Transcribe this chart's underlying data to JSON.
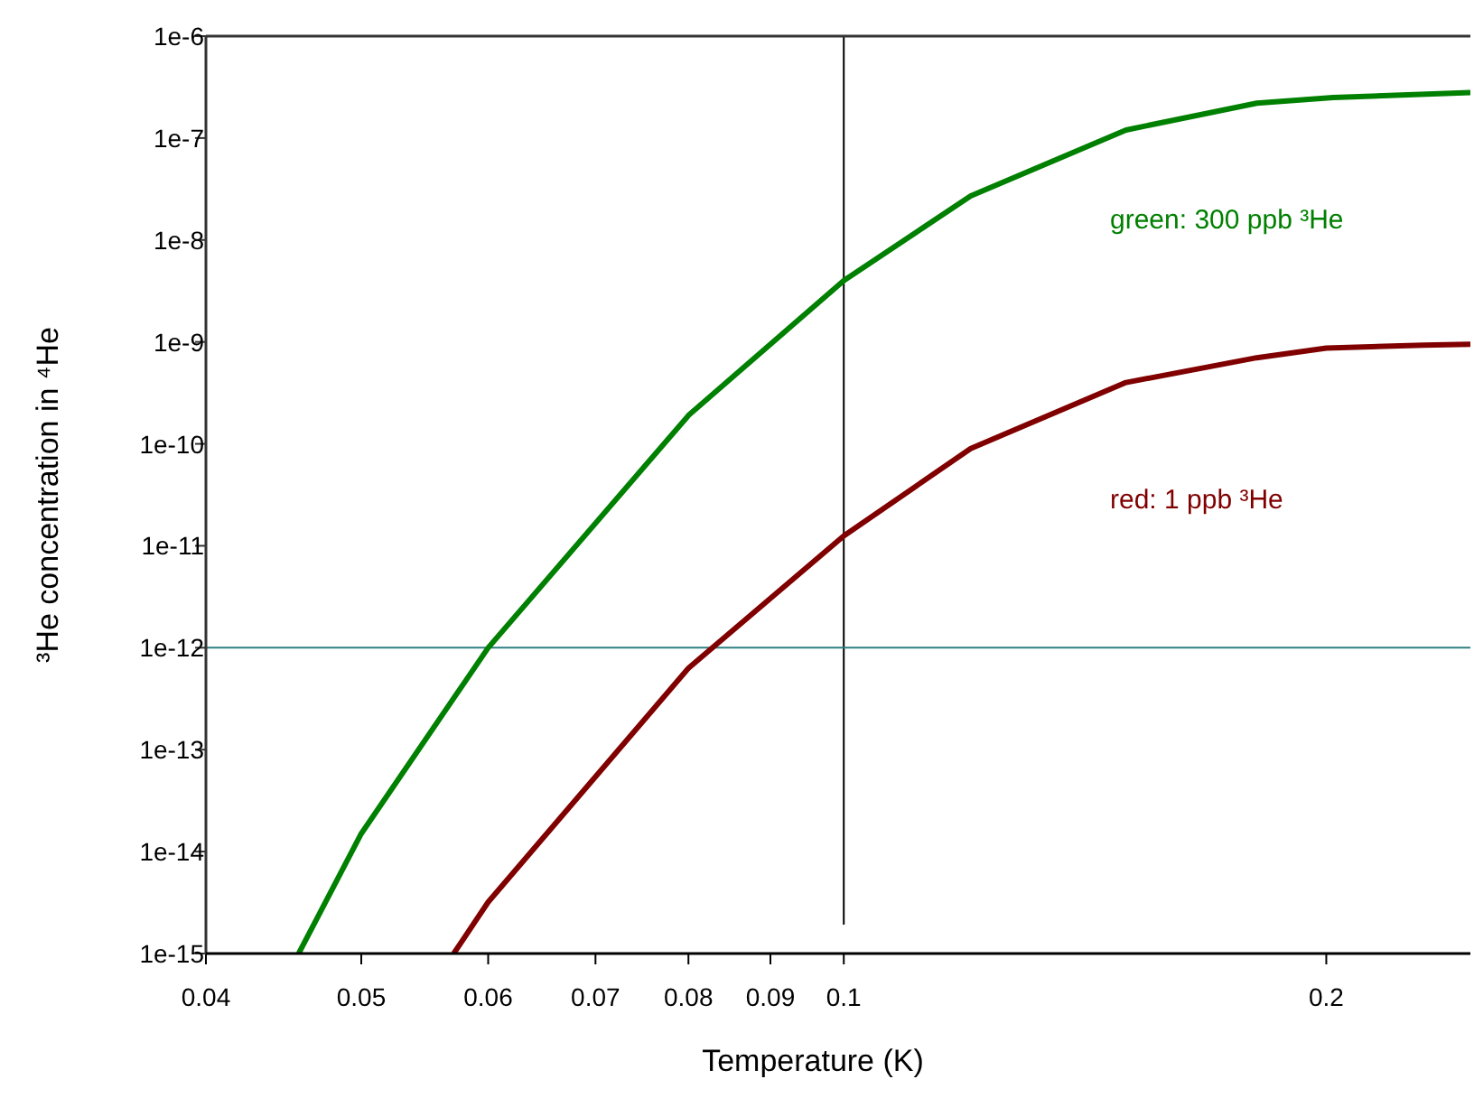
{
  "chart_data": {
    "type": "line",
    "xlabel": "Temperature (K)",
    "ylabel": "³He concentration in ⁴He",
    "log": "xy",
    "grid": false,
    "marker": "none",
    "line_style": "solid",
    "xlim": [
      0.04,
      0.246
    ],
    "xticks": [
      0.04,
      0.05,
      0.06,
      0.07,
      0.08,
      0.09,
      0.1,
      0.2
    ],
    "ylim": [
      1e-15,
      1e-06
    ],
    "yticks": [
      {
        "value": 1e-15,
        "label": "1e-15"
      },
      {
        "value": 1e-14,
        "label": "1e-14"
      },
      {
        "value": 1e-13,
        "label": "1e-13"
      },
      {
        "value": 1e-12,
        "label": "1e-12"
      },
      {
        "value": 1e-11,
        "label": "1e-11"
      },
      {
        "value": 1e-10,
        "label": "1e-10"
      },
      {
        "value": 1e-09,
        "label": "1e-9"
      },
      {
        "value": 1e-08,
        "label": "1e-8"
      },
      {
        "value": 1e-07,
        "label": "1e-7"
      },
      {
        "value": 1e-06,
        "label": "1e-6"
      }
    ],
    "series": [
      {
        "color": "#008000",
        "x": [
          0.0457,
          0.05,
          0.06,
          0.08,
          0.1,
          0.12,
          0.15,
          0.181,
          0.202,
          0.246
        ],
        "values": [
          1e-15,
          1.5e-14,
          1e-12,
          1.9e-10,
          4e-09,
          2.7e-08,
          1.2e-07,
          2.2e-07,
          2.5e-07,
          2.8e-07
        ]
      },
      {
        "color": "#800000",
        "x": [
          0.0571,
          0.06,
          0.08,
          0.1,
          0.12,
          0.15,
          0.181,
          0.2,
          0.23,
          0.246
        ],
        "values": [
          1e-15,
          3.2e-15,
          6.3e-13,
          1.25e-11,
          9e-11,
          4e-10,
          7e-10,
          8.7e-10,
          9.3e-10,
          9.5e-10
        ]
      }
    ],
    "ref_lines": [
      {
        "axis": "x",
        "value": 0.1,
        "color": "#000000"
      },
      {
        "axis": "y",
        "value": 1e-12,
        "color": "#2f7f7f"
      }
    ],
    "annotations": [
      "green: 300 ppb ³He",
      "red: 1 ppb ³He"
    ]
  }
}
